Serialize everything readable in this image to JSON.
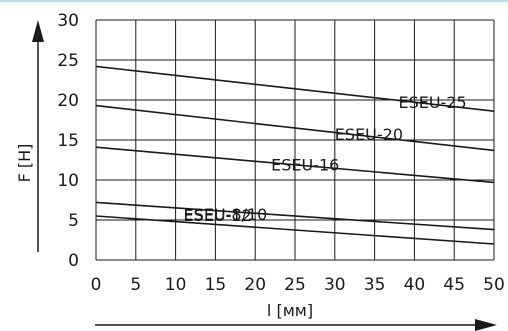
{
  "chart_data": {
    "type": "line",
    "xlabel": "l [мм]",
    "ylabel": "F [Н]",
    "xlim": [
      0,
      50
    ],
    "ylim": [
      0,
      30
    ],
    "x_ticks": [
      "0",
      "5",
      "10",
      "15",
      "20",
      "25",
      "30",
      "35",
      "40",
      "45",
      "50"
    ],
    "y_ticks": [
      "0",
      "5",
      "10",
      "15",
      "20",
      "25",
      "30"
    ],
    "grid": true,
    "series": [
      {
        "name": "ESEU-25",
        "x": [
          0,
          50
        ],
        "values": [
          24.2,
          18.6
        ]
      },
      {
        "name": "ESEU-20",
        "x": [
          0,
          50
        ],
        "values": [
          19.3,
          13.7
        ]
      },
      {
        "name": "ESEU-16",
        "x": [
          0,
          50
        ],
        "values": [
          14.1,
          9.7
        ]
      },
      {
        "name": "ESEU-12",
        "x": [
          0,
          50
        ],
        "values": [
          7.2,
          3.8
        ]
      },
      {
        "name": "ESEU-8/10",
        "x": [
          0,
          50
        ],
        "values": [
          5.5,
          2.0
        ]
      }
    ],
    "line_color": "#1a1a1a",
    "grid_color": "#1a1a1a",
    "top_rule_color": "#9fd3e6"
  }
}
